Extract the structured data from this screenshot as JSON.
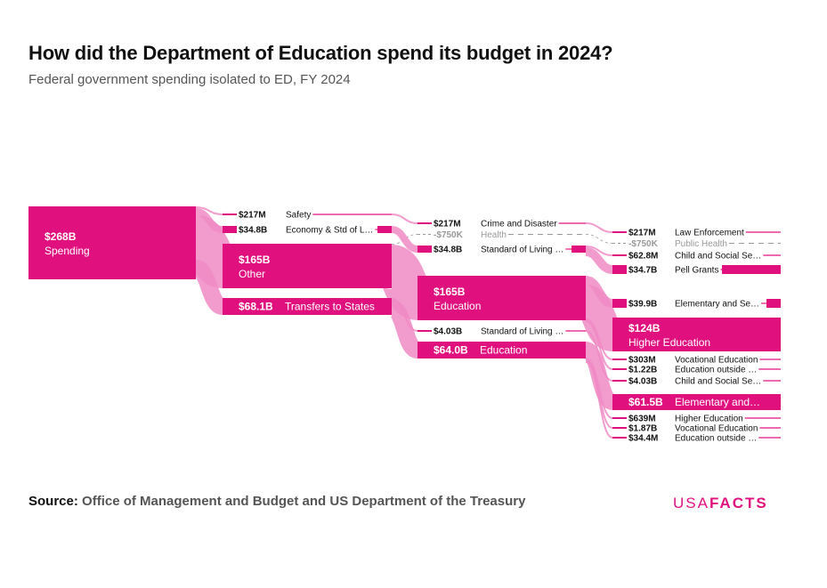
{
  "header": {
    "title": "How did the Department of Education spend its budget in 2024?",
    "subtitle": "Federal government spending isolated to ED, FY 2024"
  },
  "footer": {
    "source_label": "Source:",
    "source_text": "Office of Management and Budget and US Department of the Treasury",
    "logo_usa": "USA",
    "logo_facts": "FACTS"
  },
  "colors": {
    "node": "#e0117f",
    "link": "#f08ac4",
    "negative": "#999999",
    "label": "#111111"
  },
  "chart_data": {
    "type": "sankey",
    "title": "How did the Department of Education spend its budget in 2024?",
    "nodes": [
      {
        "id": "spending",
        "column": 0,
        "value_label": "$268B",
        "name": "Spending",
        "value_billions": 268
      },
      {
        "id": "safety",
        "column": 1,
        "value_label": "$217M",
        "name": "Safety",
        "value_billions": 0.217
      },
      {
        "id": "econ",
        "column": 1,
        "value_label": "$34.8B",
        "name": "Economy & Std of L…",
        "value_billions": 34.8
      },
      {
        "id": "other",
        "column": 1,
        "value_label": "$165B",
        "name": "Other",
        "value_billions": 165
      },
      {
        "id": "transfers",
        "column": 1,
        "value_label": "$68.1B",
        "name": "Transfers to States",
        "value_billions": 68.1
      },
      {
        "id": "crime",
        "column": 2,
        "value_label": "$217M",
        "name": "Crime and Disaster",
        "value_billions": 0.217
      },
      {
        "id": "health",
        "column": 2,
        "value_label": "-$750K",
        "name": "Health",
        "value_billions": -0.00075,
        "negative": true
      },
      {
        "id": "sol1",
        "column": 2,
        "value_label": "$34.8B",
        "name": "Standard of Living …",
        "value_billions": 34.8
      },
      {
        "id": "edu1",
        "column": 2,
        "value_label": "$165B",
        "name": "Education",
        "value_billions": 165
      },
      {
        "id": "sol2",
        "column": 2,
        "value_label": "$4.03B",
        "name": "Standard of Living …",
        "value_billions": 4.03
      },
      {
        "id": "edu2",
        "column": 2,
        "value_label": "$64.0B",
        "name": "Education",
        "value_billions": 64.0
      },
      {
        "id": "law",
        "column": 3,
        "value_label": "$217M",
        "name": "Law Enforcement",
        "value_billions": 0.217
      },
      {
        "id": "pubhealth",
        "column": 3,
        "value_label": "-$750K",
        "name": "Public Health",
        "value_billions": -0.00075,
        "negative": true
      },
      {
        "id": "css1",
        "column": 3,
        "value_label": "$62.8M",
        "name": "Child and Social Se…",
        "value_billions": 0.0628
      },
      {
        "id": "pell",
        "column": 3,
        "value_label": "$34.7B",
        "name": "Pell Grants",
        "value_billions": 34.7
      },
      {
        "id": "elem1",
        "column": 3,
        "value_label": "$39.9B",
        "name": "Elementary and Se…",
        "value_billions": 39.9
      },
      {
        "id": "higher1",
        "column": 3,
        "value_label": "$124B",
        "name": "Higher Education",
        "value_billions": 124
      },
      {
        "id": "voc1",
        "column": 3,
        "value_label": "$303M",
        "name": "Vocational Education",
        "value_billions": 0.303
      },
      {
        "id": "eduout1",
        "column": 3,
        "value_label": "$1.22B",
        "name": "Education outside …",
        "value_billions": 1.22
      },
      {
        "id": "css2",
        "column": 3,
        "value_label": "$4.03B",
        "name": "Child and Social Se…",
        "value_billions": 4.03
      },
      {
        "id": "elem2",
        "column": 3,
        "value_label": "$61.5B",
        "name": "Elementary and…",
        "value_billions": 61.5
      },
      {
        "id": "higher2",
        "column": 3,
        "value_label": "$639M",
        "name": "Higher Education",
        "value_billions": 0.639
      },
      {
        "id": "voc2",
        "column": 3,
        "value_label": "$1.87B",
        "name": "Vocational Education",
        "value_billions": 1.87
      },
      {
        "id": "eduout2",
        "column": 3,
        "value_label": "$34.4M",
        "name": "Education outside …",
        "value_billions": 0.0344
      }
    ],
    "links": [
      {
        "source": "spending",
        "target": "safety"
      },
      {
        "source": "spending",
        "target": "econ"
      },
      {
        "source": "spending",
        "target": "other"
      },
      {
        "source": "spending",
        "target": "transfers"
      },
      {
        "source": "safety",
        "target": "crime"
      },
      {
        "source": "other",
        "target": "health"
      },
      {
        "source": "econ",
        "target": "sol1"
      },
      {
        "source": "other",
        "target": "edu1"
      },
      {
        "source": "transfers",
        "target": "sol2"
      },
      {
        "source": "transfers",
        "target": "edu2"
      },
      {
        "source": "crime",
        "target": "law"
      },
      {
        "source": "health",
        "target": "pubhealth"
      },
      {
        "source": "sol1",
        "target": "css1"
      },
      {
        "source": "sol1",
        "target": "pell"
      },
      {
        "source": "edu1",
        "target": "elem1"
      },
      {
        "source": "edu1",
        "target": "higher1"
      },
      {
        "source": "edu1",
        "target": "voc1"
      },
      {
        "source": "edu1",
        "target": "eduout1"
      },
      {
        "source": "sol2",
        "target": "css2"
      },
      {
        "source": "edu2",
        "target": "elem2"
      },
      {
        "source": "edu2",
        "target": "higher2"
      },
      {
        "source": "edu2",
        "target": "voc2"
      },
      {
        "source": "edu2",
        "target": "eduout2"
      }
    ]
  }
}
